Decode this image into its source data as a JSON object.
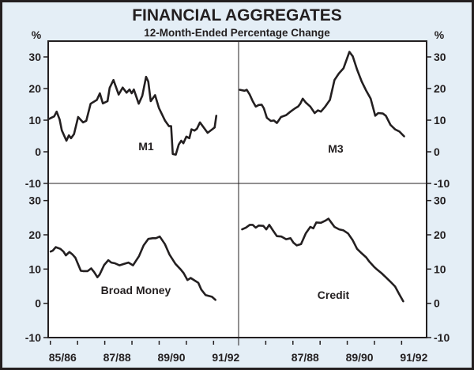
{
  "chart_data": [
    {
      "type": "line",
      "title": "FINANCIAL AGGREGATES",
      "subtitle": "12-Month-Ended Percentage Change",
      "unit_left": "%",
      "unit_right": "%",
      "panel": "top-left",
      "series_name": "M1",
      "ylim": [
        -10,
        35
      ],
      "yticks": [
        -10,
        0,
        10,
        20,
        30
      ],
      "xlim": [
        85.42,
        92.42
      ],
      "x": [
        85.45,
        85.64,
        85.73,
        85.84,
        85.92,
        86.09,
        86.18,
        86.26,
        86.37,
        86.52,
        86.7,
        86.82,
        86.98,
        87.21,
        87.32,
        87.43,
        87.6,
        87.68,
        87.82,
        88.01,
        88.16,
        88.3,
        88.41,
        88.49,
        88.57,
        88.75,
        88.88,
        89.02,
        89.1,
        89.19,
        89.35,
        89.49,
        89.72,
        89.86,
        89.94,
        90.0,
        90.11,
        90.22,
        90.31,
        90.39,
        90.5,
        90.61,
        90.69,
        90.8,
        90.89,
        91.0,
        91.12,
        91.28,
        91.45,
        91.54,
        91.6
      ],
      "y": [
        10.4,
        11.2,
        12.7,
        10.2,
        6.8,
        3.5,
        5.2,
        4.3,
        5.6,
        11.0,
        9.3,
        9.8,
        15.2,
        16.4,
        18.5,
        15.3,
        16.0,
        20.2,
        22.7,
        18.1,
        20.3,
        18.7,
        19.7,
        18.5,
        19.7,
        15.2,
        17.7,
        23.7,
        22.2,
        16.0,
        17.9,
        13.9,
        9.8,
        8.1,
        8.1,
        -0.7,
        -0.9,
        2.3,
        3.5,
        2.7,
        4.8,
        4.3,
        7.1,
        6.7,
        7.3,
        9.3,
        7.9,
        6.0,
        7.1,
        7.7,
        11.4
      ]
    },
    {
      "type": "line",
      "panel": "top-right",
      "series_name": "M3",
      "ylim": [
        -10,
        35
      ],
      "yticks": [
        -10,
        0,
        10,
        20,
        30
      ],
      "xlim": [
        85.5,
        92.42
      ],
      "x": [
        85.55,
        85.72,
        85.8,
        85.91,
        86.02,
        86.13,
        86.24,
        86.35,
        86.43,
        86.54,
        86.69,
        86.8,
        86.91,
        87.06,
        87.25,
        87.41,
        87.58,
        87.69,
        87.77,
        87.86,
        87.97,
        88.14,
        88.3,
        88.42,
        88.53,
        88.69,
        88.86,
        89.03,
        89.19,
        89.36,
        89.58,
        89.7,
        89.86,
        90.03,
        90.2,
        90.36,
        90.53,
        90.64,
        90.81,
        90.92,
        91.09,
        91.26,
        91.42,
        91.59
      ],
      "y": [
        19.6,
        19.3,
        19.6,
        18.1,
        16.0,
        14.3,
        14.8,
        14.9,
        13.75,
        10.75,
        9.75,
        9.9,
        9.1,
        11.0,
        11.6,
        12.7,
        13.75,
        14.3,
        15.2,
        16.8,
        15.6,
        14.3,
        12.25,
        13.1,
        12.7,
        14.3,
        16.4,
        22.7,
        24.75,
        26.4,
        31.6,
        30.2,
        26.0,
        22.25,
        19.3,
        16.8,
        11.4,
        12.25,
        12.1,
        11.4,
        8.5,
        7.1,
        6.4,
        4.9
      ]
    },
    {
      "type": "line",
      "panel": "bottom-left",
      "series_name": "Broad Money",
      "ylim": [
        -10,
        35
      ],
      "yticks": [
        -10,
        0,
        10,
        20,
        30
      ],
      "xlim": [
        85.42,
        92.42
      ],
      "xtick_labels": [
        "85/86",
        "87/88",
        "89/90",
        "91/92"
      ],
      "x": [
        85.51,
        85.59,
        85.7,
        85.87,
        85.98,
        86.07,
        86.2,
        86.31,
        86.42,
        86.62,
        86.7,
        86.87,
        87.0,
        87.11,
        87.23,
        87.31,
        87.48,
        87.63,
        87.74,
        87.87,
        88.04,
        88.21,
        88.37,
        88.54,
        88.76,
        88.93,
        89.1,
        89.26,
        89.38,
        89.52,
        89.71,
        89.88,
        90.1,
        90.29,
        90.4,
        90.54,
        90.66,
        90.82,
        90.94,
        91.05,
        91.21,
        91.44,
        91.57
      ],
      "y": [
        15.1,
        15.4,
        16.4,
        15.9,
        15.1,
        14.0,
        15.0,
        14.3,
        13.3,
        9.5,
        9.4,
        9.4,
        10.2,
        9.1,
        7.6,
        8.4,
        11.2,
        12.6,
        11.9,
        11.7,
        11.1,
        11.5,
        11.9,
        11.1,
        13.8,
        16.9,
        18.8,
        19.0,
        19.0,
        19.5,
        17.3,
        14.2,
        11.5,
        9.9,
        8.8,
        6.8,
        7.4,
        6.6,
        6.0,
        4.0,
        2.4,
        1.9,
        1.0
      ]
    },
    {
      "type": "line",
      "panel": "bottom-right",
      "series_name": "Credit",
      "ylim": [
        -10,
        35
      ],
      "yticks": [
        -10,
        0,
        10,
        20,
        30
      ],
      "xlim": [
        85.5,
        92.42
      ],
      "xtick_labels": [
        "87/88",
        "89/90",
        "91/92"
      ],
      "x": [
        85.63,
        85.77,
        85.91,
        86.02,
        86.13,
        86.24,
        86.41,
        86.52,
        86.63,
        86.74,
        86.91,
        87.08,
        87.25,
        87.41,
        87.52,
        87.64,
        87.8,
        87.97,
        88.14,
        88.25,
        88.36,
        88.53,
        88.69,
        88.81,
        88.92,
        89.03,
        89.2,
        89.36,
        89.53,
        89.7,
        89.86,
        90.03,
        90.2,
        90.31,
        90.48,
        90.59,
        90.76,
        90.92,
        91.09,
        91.26,
        91.41,
        91.56
      ],
      "y": [
        21.6,
        22.1,
        22.9,
        22.9,
        22.1,
        22.7,
        22.6,
        21.6,
        22.9,
        21.6,
        19.6,
        19.5,
        18.7,
        19.0,
        17.7,
        16.9,
        17.3,
        20.4,
        22.3,
        21.9,
        23.6,
        23.5,
        24.1,
        24.7,
        23.5,
        22.3,
        21.6,
        21.3,
        20.4,
        18.4,
        15.9,
        14.6,
        13.4,
        12.2,
        10.7,
        9.9,
        8.8,
        7.6,
        6.3,
        4.9,
        2.7,
        0.6
      ]
    }
  ],
  "colors": {
    "background": "#e4eef6",
    "plot": "#ffffff",
    "line": "#231f20"
  }
}
